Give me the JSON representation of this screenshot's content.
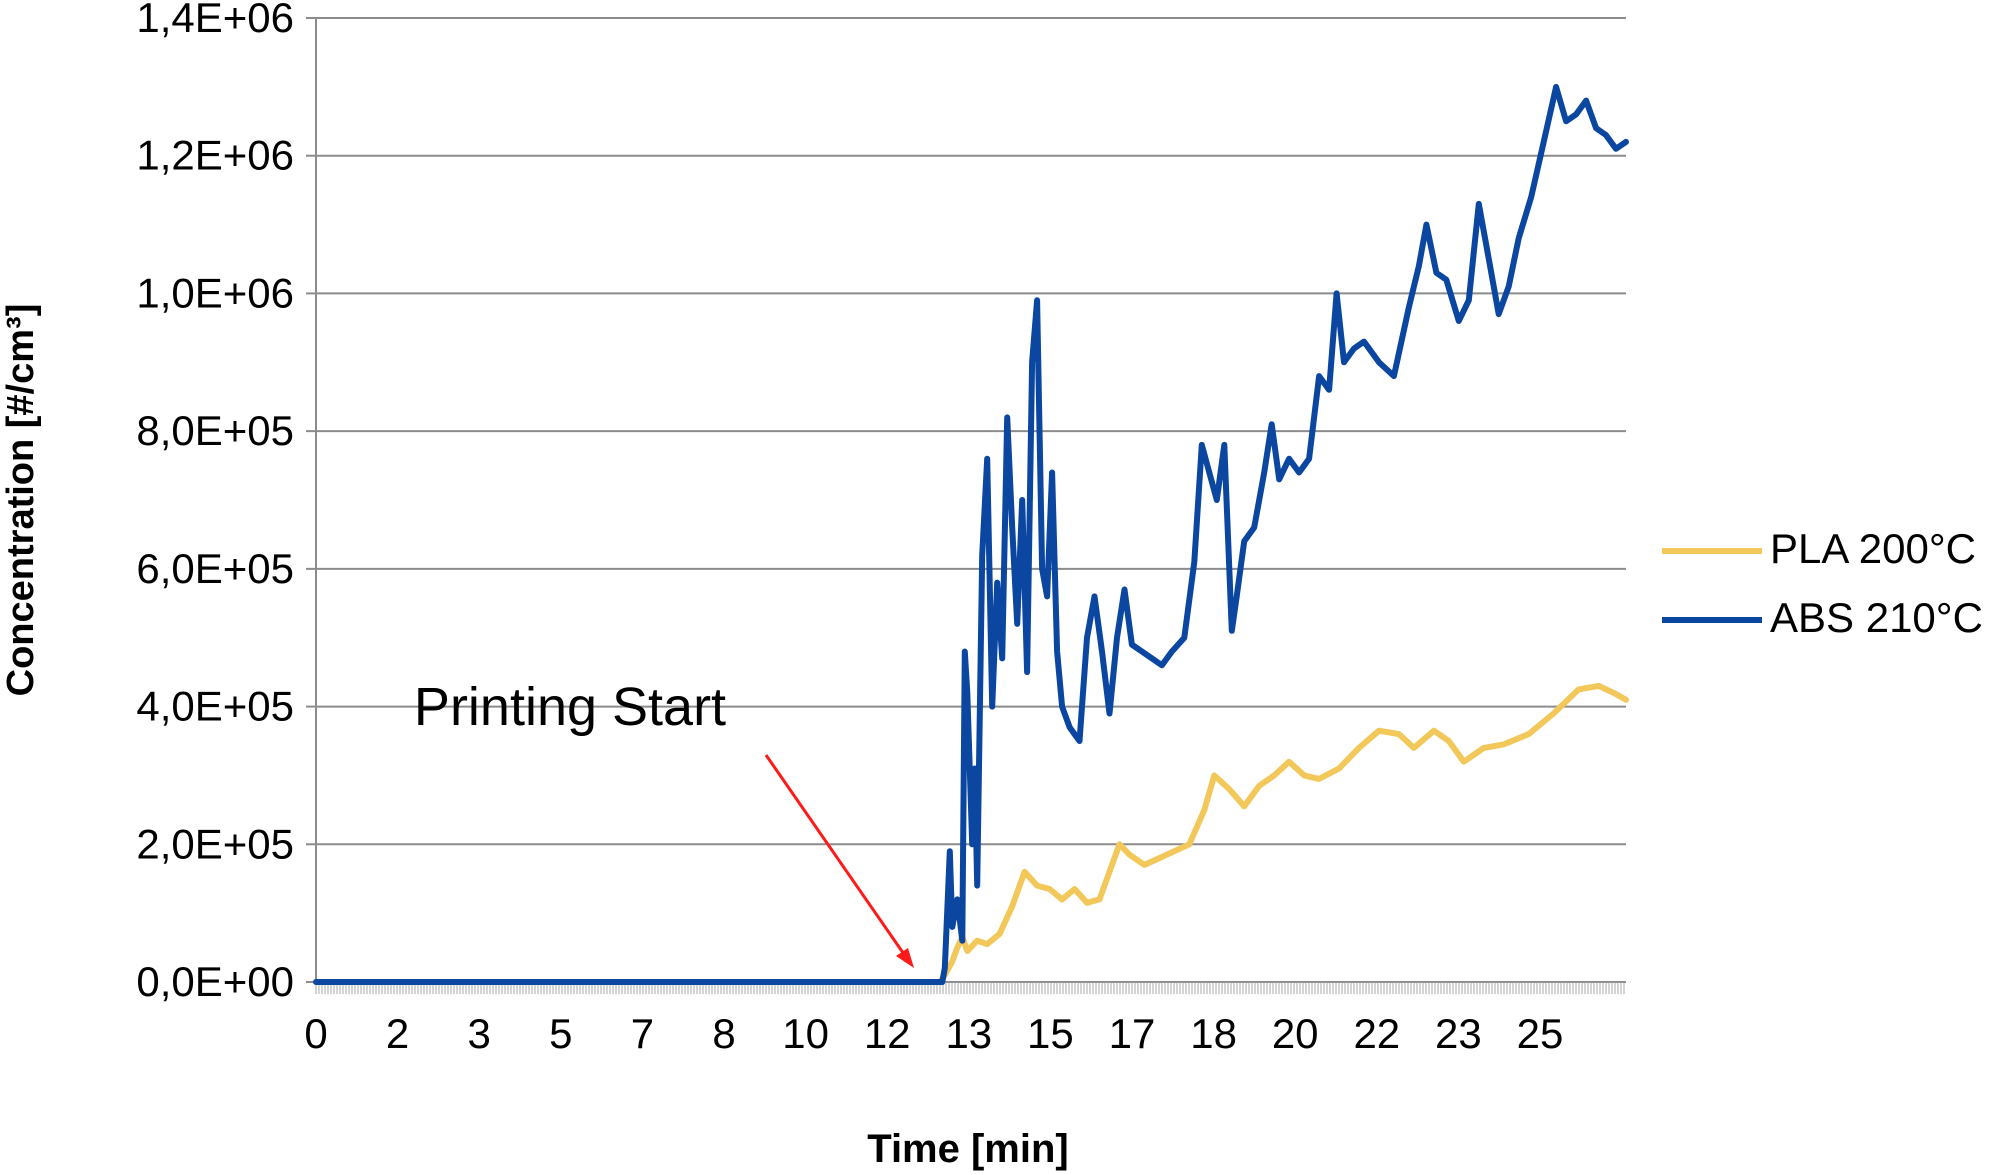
{
  "chart_data": {
    "type": "line",
    "title": "",
    "xlabel": "Time [min]",
    "ylabel": "Concentration [#/cm³]",
    "ylim": [
      0,
      1400000
    ],
    "yticks": [
      "0,0E+00",
      "2,0E+05",
      "4,0E+05",
      "6,0E+05",
      "8,0E+05",
      "1,0E+06",
      "1,2E+06",
      "1,4E+06"
    ],
    "xticks": [
      "0",
      "2",
      "3",
      "5",
      "7",
      "8",
      "10",
      "12",
      "13",
      "15",
      "17",
      "18",
      "20",
      "22",
      "23",
      "25"
    ],
    "grid": true,
    "legend_position": "right",
    "annotation": {
      "text": "Printing Start",
      "points_to_x": "12,5",
      "arrow_color": "#ff1a1a"
    },
    "series": [
      {
        "name": "PLA 200°C",
        "color": "#f2c85a",
        "points": [
          [
            0,
            0
          ],
          [
            12.5,
            0
          ],
          [
            12.6,
            10000
          ],
          [
            12.75,
            30000
          ],
          [
            12.85,
            50000
          ],
          [
            12.95,
            65000
          ],
          [
            13.05,
            45000
          ],
          [
            13.25,
            60000
          ],
          [
            13.45,
            55000
          ],
          [
            13.7,
            70000
          ],
          [
            13.95,
            110000
          ],
          [
            14.2,
            160000
          ],
          [
            14.45,
            140000
          ],
          [
            14.7,
            135000
          ],
          [
            14.95,
            120000
          ],
          [
            15.2,
            135000
          ],
          [
            15.45,
            115000
          ],
          [
            15.7,
            120000
          ],
          [
            15.95,
            170000
          ],
          [
            16.1,
            200000
          ],
          [
            16.3,
            185000
          ],
          [
            16.6,
            170000
          ],
          [
            16.9,
            180000
          ],
          [
            17.2,
            190000
          ],
          [
            17.5,
            200000
          ],
          [
            17.8,
            250000
          ],
          [
            18.0,
            300000
          ],
          [
            18.3,
            280000
          ],
          [
            18.6,
            255000
          ],
          [
            18.9,
            285000
          ],
          [
            19.2,
            300000
          ],
          [
            19.5,
            320000
          ],
          [
            19.8,
            300000
          ],
          [
            20.1,
            295000
          ],
          [
            20.5,
            310000
          ],
          [
            20.9,
            340000
          ],
          [
            21.3,
            365000
          ],
          [
            21.7,
            360000
          ],
          [
            22.0,
            340000
          ],
          [
            22.4,
            365000
          ],
          [
            22.7,
            350000
          ],
          [
            23.0,
            320000
          ],
          [
            23.4,
            340000
          ],
          [
            23.8,
            345000
          ],
          [
            24.3,
            360000
          ],
          [
            24.8,
            390000
          ],
          [
            25.3,
            425000
          ],
          [
            25.7,
            430000
          ],
          [
            26.0,
            420000
          ],
          [
            26.25,
            410000
          ]
        ]
      },
      {
        "name": "ABS 210°C",
        "color": "#0b47a0",
        "points": [
          [
            0,
            0
          ],
          [
            12.55,
            0
          ],
          [
            12.6,
            20000
          ],
          [
            12.7,
            190000
          ],
          [
            12.75,
            80000
          ],
          [
            12.85,
            120000
          ],
          [
            12.95,
            60000
          ],
          [
            13.0,
            480000
          ],
          [
            13.05,
            420000
          ],
          [
            13.15,
            200000
          ],
          [
            13.2,
            310000
          ],
          [
            13.25,
            140000
          ],
          [
            13.35,
            620000
          ],
          [
            13.45,
            760000
          ],
          [
            13.55,
            400000
          ],
          [
            13.65,
            580000
          ],
          [
            13.75,
            470000
          ],
          [
            13.85,
            820000
          ],
          [
            13.95,
            660000
          ],
          [
            14.05,
            520000
          ],
          [
            14.15,
            700000
          ],
          [
            14.25,
            450000
          ],
          [
            14.35,
            900000
          ],
          [
            14.45,
            990000
          ],
          [
            14.55,
            600000
          ],
          [
            14.65,
            560000
          ],
          [
            14.75,
            740000
          ],
          [
            14.85,
            480000
          ],
          [
            14.95,
            400000
          ],
          [
            15.1,
            370000
          ],
          [
            15.3,
            350000
          ],
          [
            15.45,
            500000
          ],
          [
            15.6,
            560000
          ],
          [
            15.75,
            480000
          ],
          [
            15.9,
            390000
          ],
          [
            16.05,
            500000
          ],
          [
            16.2,
            570000
          ],
          [
            16.35,
            490000
          ],
          [
            16.55,
            480000
          ],
          [
            16.75,
            470000
          ],
          [
            16.95,
            460000
          ],
          [
            17.15,
            480000
          ],
          [
            17.4,
            500000
          ],
          [
            17.6,
            610000
          ],
          [
            17.75,
            780000
          ],
          [
            17.9,
            740000
          ],
          [
            18.05,
            700000
          ],
          [
            18.2,
            780000
          ],
          [
            18.35,
            510000
          ],
          [
            18.45,
            560000
          ],
          [
            18.6,
            640000
          ],
          [
            18.8,
            660000
          ],
          [
            19.0,
            740000
          ],
          [
            19.15,
            810000
          ],
          [
            19.3,
            730000
          ],
          [
            19.5,
            760000
          ],
          [
            19.7,
            740000
          ],
          [
            19.9,
            760000
          ],
          [
            20.1,
            880000
          ],
          [
            20.3,
            860000
          ],
          [
            20.45,
            1000000
          ],
          [
            20.6,
            900000
          ],
          [
            20.8,
            920000
          ],
          [
            21.0,
            930000
          ],
          [
            21.3,
            900000
          ],
          [
            21.6,
            880000
          ],
          [
            21.9,
            980000
          ],
          [
            22.1,
            1040000
          ],
          [
            22.25,
            1100000
          ],
          [
            22.45,
            1030000
          ],
          [
            22.65,
            1020000
          ],
          [
            22.9,
            960000
          ],
          [
            23.1,
            990000
          ],
          [
            23.3,
            1130000
          ],
          [
            23.5,
            1050000
          ],
          [
            23.7,
            970000
          ],
          [
            23.9,
            1010000
          ],
          [
            24.1,
            1080000
          ],
          [
            24.35,
            1140000
          ],
          [
            24.6,
            1220000
          ],
          [
            24.85,
            1300000
          ],
          [
            25.05,
            1250000
          ],
          [
            25.25,
            1260000
          ],
          [
            25.45,
            1280000
          ],
          [
            25.65,
            1240000
          ],
          [
            25.85,
            1230000
          ],
          [
            26.05,
            1210000
          ],
          [
            26.25,
            1220000
          ]
        ]
      }
    ]
  }
}
